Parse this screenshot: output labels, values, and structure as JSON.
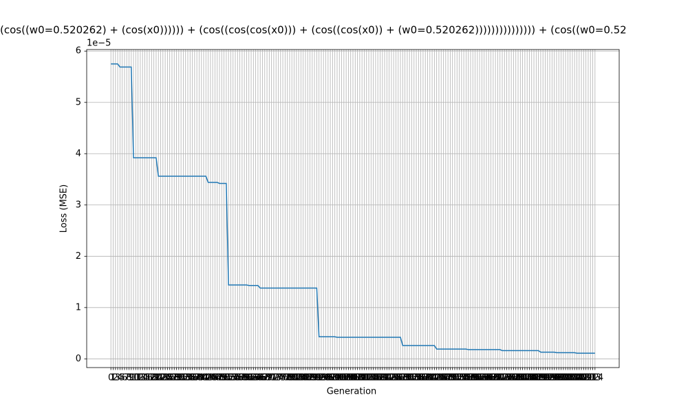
{
  "chart_data": {
    "type": "line",
    "title": "(cos((w0=0.520262) + (cos(x0)))))) + (cos((cos(cos(x0))) + (cos((cos(x0)) + (w0=0.520262))))))))))))))) + (cos((w0=0.52",
    "x_label": "Generation",
    "y_label": "Loss (MSE)",
    "y_offset_label": "1e−5",
    "x": [
      0,
      1,
      2,
      3,
      4,
      5,
      6,
      7,
      8,
      9,
      10,
      11,
      12,
      13,
      14,
      15,
      16,
      17,
      18,
      19,
      20,
      21,
      22,
      23,
      24,
      25,
      26,
      27,
      28,
      29,
      30,
      31,
      32,
      33,
      34,
      35,
      36,
      37,
      38,
      39,
      40,
      41,
      42,
      43,
      44,
      45,
      46,
      47,
      48,
      49,
      50,
      51,
      52,
      53,
      54,
      55,
      56,
      57,
      58,
      59,
      60,
      61,
      62,
      63,
      64,
      65,
      66,
      67,
      68,
      69,
      70,
      71,
      72,
      73,
      74,
      75,
      76,
      77,
      78,
      79,
      80,
      81,
      82,
      83,
      84,
      85,
      86,
      87,
      88,
      89,
      90,
      91,
      92,
      93,
      94,
      95,
      96,
      97,
      98,
      99,
      100,
      101,
      102,
      103,
      104,
      105,
      106,
      107,
      108,
      109,
      110,
      111,
      112,
      113,
      114,
      115,
      116,
      117,
      118,
      119,
      120,
      121,
      122,
      123,
      124,
      125,
      126,
      127,
      128,
      129,
      130,
      131,
      132,
      133,
      134,
      135,
      136,
      137,
      138,
      139,
      140,
      141,
      142,
      143,
      144,
      145,
      146,
      147,
      148,
      149,
      150,
      151,
      152,
      153,
      154,
      155,
      156,
      157,
      158,
      159,
      160,
      161,
      162,
      163,
      164,
      165,
      166,
      167,
      168,
      169,
      170,
      171,
      172,
      173,
      174,
      175,
      176,
      177,
      178,
      179,
      180,
      181,
      182,
      183,
      184,
      185,
      186,
      187,
      188,
      189,
      190,
      191,
      192,
      193,
      194,
      195,
      196,
      197,
      198,
      199,
      200,
      201,
      202,
      203,
      204,
      205,
      206,
      207,
      208,
      209,
      210,
      211,
      212,
      213,
      214
    ],
    "series": [
      {
        "name": "Loss",
        "color": "#1f77b4",
        "values": [
          5.75,
          5.75,
          5.75,
          5.75,
          5.69,
          5.69,
          5.69,
          5.69,
          5.69,
          5.69,
          3.92,
          3.92,
          3.92,
          3.92,
          3.92,
          3.92,
          3.92,
          3.92,
          3.92,
          3.92,
          3.92,
          3.56,
          3.56,
          3.56,
          3.56,
          3.56,
          3.56,
          3.56,
          3.56,
          3.56,
          3.56,
          3.56,
          3.56,
          3.56,
          3.56,
          3.56,
          3.56,
          3.56,
          3.56,
          3.56,
          3.56,
          3.56,
          3.56,
          3.44,
          3.44,
          3.44,
          3.44,
          3.44,
          3.42,
          3.42,
          3.42,
          3.42,
          1.44,
          1.44,
          1.44,
          1.44,
          1.44,
          1.44,
          1.44,
          1.44,
          1.44,
          1.43,
          1.43,
          1.43,
          1.43,
          1.43,
          1.38,
          1.38,
          1.38,
          1.38,
          1.38,
          1.38,
          1.38,
          1.38,
          1.38,
          1.38,
          1.38,
          1.38,
          1.38,
          1.38,
          1.38,
          1.38,
          1.38,
          1.38,
          1.38,
          1.38,
          1.38,
          1.38,
          1.38,
          1.38,
          1.38,
          1.38,
          0.43,
          0.43,
          0.43,
          0.43,
          0.43,
          0.43,
          0.43,
          0.43,
          0.42,
          0.42,
          0.42,
          0.42,
          0.42,
          0.42,
          0.42,
          0.42,
          0.42,
          0.42,
          0.42,
          0.42,
          0.42,
          0.42,
          0.42,
          0.42,
          0.42,
          0.42,
          0.42,
          0.42,
          0.42,
          0.42,
          0.42,
          0.42,
          0.42,
          0.42,
          0.42,
          0.42,
          0.42,
          0.26,
          0.26,
          0.26,
          0.26,
          0.26,
          0.26,
          0.26,
          0.26,
          0.26,
          0.26,
          0.26,
          0.26,
          0.26,
          0.26,
          0.26,
          0.19,
          0.19,
          0.19,
          0.19,
          0.19,
          0.19,
          0.19,
          0.19,
          0.19,
          0.19,
          0.19,
          0.19,
          0.19,
          0.19,
          0.18,
          0.18,
          0.18,
          0.18,
          0.18,
          0.18,
          0.18,
          0.18,
          0.18,
          0.18,
          0.18,
          0.18,
          0.18,
          0.18,
          0.18,
          0.16,
          0.16,
          0.16,
          0.16,
          0.16,
          0.16,
          0.16,
          0.16,
          0.16,
          0.16,
          0.16,
          0.16,
          0.16,
          0.16,
          0.16,
          0.16,
          0.16,
          0.13,
          0.13,
          0.13,
          0.13,
          0.13,
          0.13,
          0.13,
          0.12,
          0.12,
          0.12,
          0.12,
          0.12,
          0.12,
          0.12,
          0.12,
          0.12,
          0.11,
          0.11,
          0.11,
          0.11,
          0.11,
          0.11,
          0.11,
          0.11,
          0.11
        ]
      }
    ],
    "xlim": [
      -10.7,
      224.7
    ],
    "xticks": [
      0,
      1,
      2,
      3,
      4,
      5,
      6,
      7,
      8,
      9,
      10,
      11,
      12,
      13,
      14,
      15,
      16,
      17,
      18,
      19,
      20,
      21,
      22,
      23,
      24,
      25,
      26,
      27,
      28,
      29,
      30,
      31,
      32,
      33,
      34,
      35,
      36,
      37,
      38,
      39,
      40,
      41,
      42,
      43,
      44,
      45,
      46,
      47,
      48,
      49,
      50,
      51,
      52,
      53,
      54,
      55,
      56,
      57,
      58,
      59,
      60,
      61,
      62,
      63,
      64,
      65,
      66,
      67,
      68,
      69,
      70,
      71,
      72,
      73,
      74,
      75,
      76,
      77,
      78,
      79,
      80,
      81,
      82,
      83,
      84,
      85,
      86,
      87,
      88,
      89,
      90,
      91,
      92,
      93,
      94,
      95,
      96,
      97,
      98,
      99,
      100,
      101,
      102,
      103,
      104,
      105,
      106,
      107,
      108,
      109,
      110,
      111,
      112,
      113,
      114,
      115,
      116,
      117,
      118,
      119,
      120,
      121,
      122,
      123,
      124,
      125,
      126,
      127,
      128,
      129,
      130,
      131,
      132,
      133,
      134,
      135,
      136,
      137,
      138,
      139,
      140,
      141,
      142,
      143,
      144,
      145,
      146,
      147,
      148,
      149,
      150,
      151,
      152,
      153,
      154,
      155,
      156,
      157,
      158,
      159,
      160,
      161,
      162,
      163,
      164,
      165,
      166,
      167,
      168,
      169,
      170,
      171,
      172,
      173,
      174,
      175,
      176,
      177,
      178,
      179,
      180,
      181,
      182,
      183,
      184,
      185,
      186,
      187,
      188,
      189,
      190,
      191,
      192,
      193,
      194,
      195,
      196,
      197,
      198,
      199,
      200,
      201,
      202,
      203,
      204,
      205,
      206,
      207,
      208,
      209,
      210,
      211,
      212,
      213,
      214
    ],
    "ylim": [
      -0.17,
      6.03
    ],
    "yticks": [
      0,
      1,
      2,
      3,
      4,
      5,
      6
    ],
    "grid": true
  }
}
